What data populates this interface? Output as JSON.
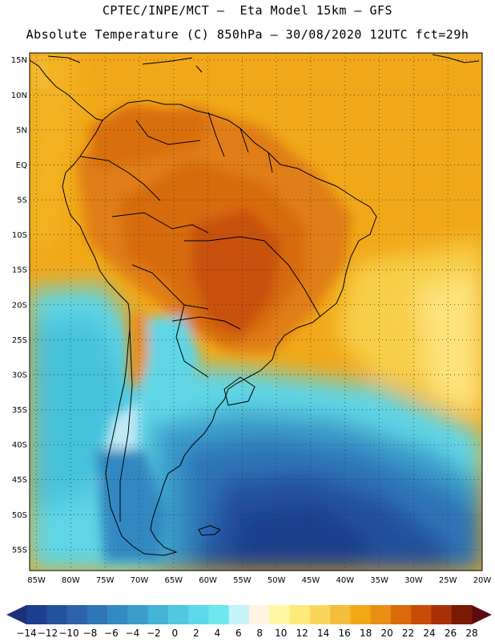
{
  "header": {
    "line1": "CPTEC/INPE/MCT –  Eta Model 15km – GFS",
    "line2": "Absolute Temperature (C) 850hPa – 30/08/2020 12UTC fct=29h"
  },
  "map": {
    "lat_labels": [
      "15N",
      "10N",
      "5N",
      "EQ",
      "5S",
      "10S",
      "15S",
      "20S",
      "25S",
      "30S",
      "35S",
      "40S",
      "45S",
      "50S",
      "55S"
    ],
    "lon_labels": [
      "85W",
      "80W",
      "75W",
      "70W",
      "65W",
      "60W",
      "55W",
      "50W",
      "45W",
      "40W",
      "35W",
      "30W",
      "25W",
      "20W"
    ],
    "lon_range": [
      -86,
      -20
    ],
    "lat_range": [
      -58,
      16
    ],
    "gridlines": "dotted"
  },
  "colorbar": {
    "labels": [
      "-14",
      "-12",
      "-10",
      "-8",
      "-6",
      "-4",
      "-2",
      "0",
      "2",
      "4",
      "6",
      "8",
      "10",
      "12",
      "14",
      "16",
      "18",
      "20",
      "22",
      "24",
      "26",
      "28"
    ],
    "colors": [
      "#1d3f8f",
      "#24519c",
      "#2c63a9",
      "#2f76b6",
      "#3389c1",
      "#3a9dcc",
      "#43b3d6",
      "#4fc8e0",
      "#5dd8e8",
      "#6ee8ee",
      "#c5f3f7",
      "#fff4df",
      "#fff7a3",
      "#ffea7a",
      "#fbd65d",
      "#f4be3c",
      "#f2a815",
      "#e88f14",
      "#db6a08",
      "#c84b06",
      "#a83005",
      "#7a1a04"
    ],
    "min_color": "#1d3179",
    "max_color": "#5e0a12"
  }
}
